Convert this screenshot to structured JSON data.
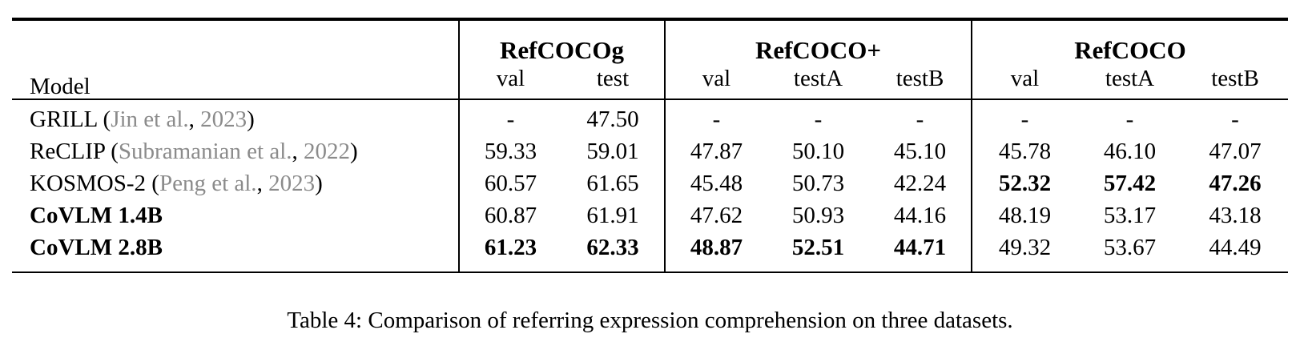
{
  "table": {
    "header": {
      "model": "Model",
      "groups": [
        {
          "label": "RefCOCOg",
          "subs": [
            "val",
            "test"
          ]
        },
        {
          "label": "RefCOCO+",
          "subs": [
            "val",
            "testA",
            "testB"
          ]
        },
        {
          "label": "RefCOCO",
          "subs": [
            "val",
            "testA",
            "testB"
          ]
        }
      ]
    },
    "punct": {
      "open": " (",
      "comma": ", ",
      "close": ")"
    },
    "rows": [
      {
        "model": "GRILL",
        "cite_authors": "Jin et al.",
        "cite_year": "2023",
        "values": [
          "-",
          "47.50",
          "-",
          "-",
          "-",
          "-",
          "-",
          "-"
        ]
      },
      {
        "model": "ReCLIP",
        "cite_authors": "Subramanian et al.",
        "cite_year": "2022",
        "values": [
          "59.33",
          "59.01",
          "47.87",
          "50.10",
          "45.10",
          "45.78",
          "46.10",
          "47.07"
        ]
      },
      {
        "model": "KOSMOS-2",
        "cite_authors": "Peng et al.",
        "cite_year": "2023",
        "values": [
          "60.57",
          "61.65",
          "45.48",
          "50.73",
          "42.24",
          "52.32",
          "57.42",
          "47.26"
        ]
      },
      {
        "model": "CoVLM 1.4B",
        "values": [
          "60.87",
          "61.91",
          "47.62",
          "50.93",
          "44.16",
          "48.19",
          "53.17",
          "43.18"
        ]
      },
      {
        "model": "CoVLM 2.8B",
        "values": [
          "61.23",
          "62.33",
          "48.87",
          "52.51",
          "44.71",
          "49.32",
          "53.67",
          "44.49"
        ]
      }
    ]
  },
  "caption": "Table 4: Comparison of referring expression comprehension on three datasets.",
  "colors": {
    "text": "#000000",
    "citation_gray": "#8b8b8b",
    "background": "#ffffff"
  }
}
